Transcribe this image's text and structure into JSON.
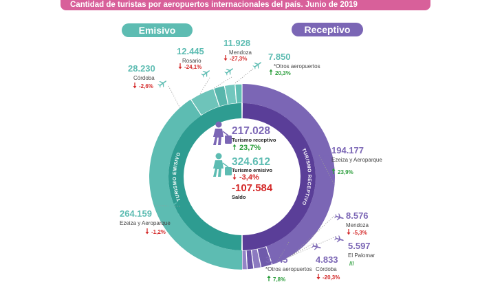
{
  "header": {
    "title": "Cantidad de turistas por aeropuertos internacionales del país. Junio de 2019"
  },
  "pills": {
    "emisivo": "Emisivo",
    "receptivo": "Receptivo"
  },
  "ring_labels": {
    "emisivo": "Turismo emisivo",
    "receptivo": "Turismo receptivo"
  },
  "center": {
    "receptivo": {
      "value": "217.028",
      "label": "Turismo receptivo",
      "change": "23,7%",
      "direction": "up"
    },
    "emisivo": {
      "value": "324.612",
      "label": "Turismo emisivo",
      "change": "-3,4%",
      "direction": "down"
    },
    "saldo": {
      "value": "-107.584",
      "label": "Saldo"
    }
  },
  "colors": {
    "emisivo": "#5dbcb2",
    "emisivo_dark": "#2e9c91",
    "receptivo": "#7b66b5",
    "receptivo_dark": "#5a3e98",
    "up": "#2a9d3a",
    "down": "#d42a2a",
    "title_bar": "#d8609a"
  },
  "chart_data": {
    "type": "pie",
    "title": "Cantidad de turistas por aeropuertos internacionales del país. Junio de 2019",
    "series": [
      {
        "name": "Receptivo",
        "total": 217028,
        "total_change": "23,7%",
        "items": [
          {
            "name": "Ezeiza y Aeroparque",
            "value": 194177,
            "value_label": "194.177",
            "change": "23,9%",
            "direction": "up"
          },
          {
            "name": "Mendoza",
            "value": 8576,
            "value_label": "8.576",
            "change": "-5,3%",
            "direction": "down"
          },
          {
            "name": "El Palomar",
            "value": 5597,
            "value_label": "5.597",
            "change": "///",
            "direction": "none"
          },
          {
            "name": "Córdoba",
            "value": 4833,
            "value_label": "4.833",
            "change": "-20,3%",
            "direction": "down"
          },
          {
            "name": "*Otros aeropuertos",
            "value": 3845,
            "value_label": "3.845",
            "change": "7,8%",
            "direction": "up"
          }
        ]
      },
      {
        "name": "Emisivo",
        "total": 324612,
        "total_change": "-3,4%",
        "items": [
          {
            "name": "Ezeiza y Aeroparque",
            "value": 264159,
            "value_label": "264.159",
            "change": "-1,2%",
            "direction": "down"
          },
          {
            "name": "Córdoba",
            "value": 28230,
            "value_label": "28.230",
            "change": "-2,6%",
            "direction": "down"
          },
          {
            "name": "Rosario",
            "value": 12445,
            "value_label": "12.445",
            "change": "-24,1%",
            "direction": "down"
          },
          {
            "name": "Mendoza",
            "value": 11928,
            "value_label": "11.928",
            "change": "-27,3%",
            "direction": "down"
          },
          {
            "name": "*Otros aeropuertos",
            "value": 7850,
            "value_label": "7.850",
            "change": "20,3%",
            "direction": "up"
          }
        ]
      }
    ],
    "saldo": -107584
  }
}
